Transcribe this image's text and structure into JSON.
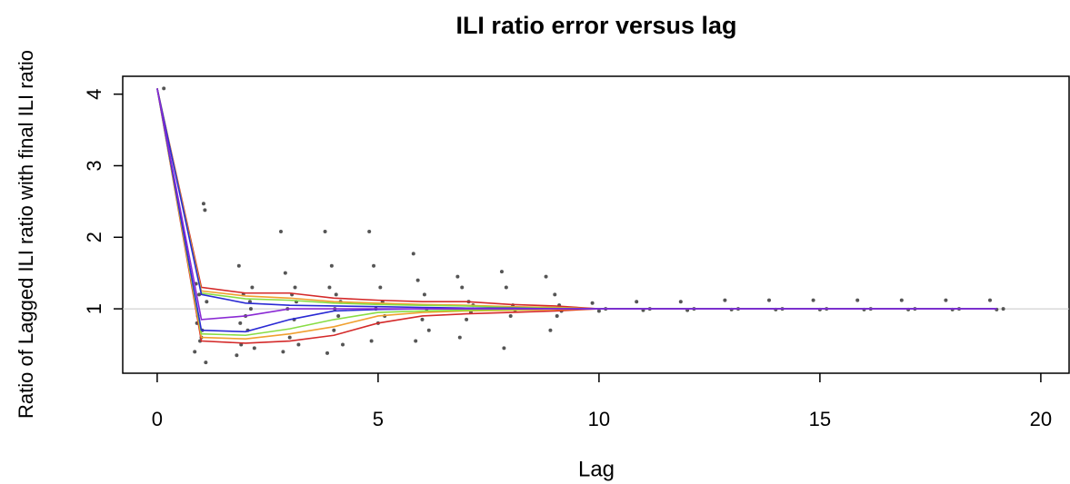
{
  "chart_data": {
    "type": "line",
    "title": "ILI ratio error versus lag",
    "x_label": "Lag",
    "y_label": "Ratio of Lagged ILI ratio with final ILI ratio",
    "xlim": [
      -0.78,
      20.64
    ],
    "ylim": [
      0.1,
      4.25
    ],
    "xticks": [
      0,
      5,
      10,
      15,
      20
    ],
    "yticks": [
      1,
      2,
      3,
      4
    ],
    "reference_line": 1,
    "x": [
      0,
      1,
      2,
      3,
      4,
      5,
      6,
      7,
      8,
      9,
      10,
      11,
      12,
      13,
      14,
      15,
      16,
      17,
      18,
      19
    ],
    "points": {
      "color": "#555555",
      "x": [
        0.15,
        0.85,
        0.9,
        0.95,
        1.0,
        1.05,
        1.1,
        0.88,
        1.02,
        1.08,
        0.92,
        1.12,
        0.97,
        1.8,
        1.85,
        1.9,
        1.95,
        2.0,
        2.05,
        2.1,
        2.15,
        2.2,
        1.88,
        2.12,
        2.8,
        2.85,
        2.9,
        3.0,
        3.05,
        3.1,
        3.15,
        3.2,
        2.95,
        3.12,
        3.8,
        3.85,
        3.95,
        4.0,
        4.05,
        4.1,
        4.15,
        4.2,
        3.9,
        4.02,
        4.8,
        4.85,
        4.9,
        5.0,
        5.05,
        5.1,
        5.15,
        4.95,
        5.8,
        5.85,
        5.9,
        6.0,
        6.05,
        6.1,
        6.15,
        6.8,
        6.85,
        6.9,
        7.0,
        7.05,
        7.1,
        7.15,
        7.8,
        7.85,
        7.9,
        8.0,
        8.05,
        8.1,
        8.8,
        8.9,
        9.0,
        9.05,
        9.1,
        9.15,
        9.85,
        10.0,
        10.15,
        10.85,
        11.0,
        11.15,
        11.85,
        12.0,
        12.15,
        12.85,
        13.0,
        13.15,
        13.85,
        14.0,
        14.15,
        14.85,
        15.0,
        15.15,
        15.85,
        16.0,
        16.15,
        16.85,
        17.0,
        17.15,
        17.85,
        18.0,
        18.15,
        18.85,
        19.0,
        19.15
      ],
      "values": [
        4.08,
        0.4,
        0.8,
        1.2,
        0.6,
        2.47,
        0.25,
        1.35,
        0.7,
        2.38,
        0.9,
        1.1,
        0.55,
        0.35,
        1.6,
        0.5,
        1.2,
        0.9,
        0.7,
        1.1,
        1.3,
        0.45,
        0.8,
        1.0,
        2.08,
        0.4,
        1.5,
        0.6,
        1.2,
        0.85,
        1.1,
        0.5,
        1.0,
        1.3,
        2.08,
        0.38,
        1.6,
        0.7,
        1.2,
        0.9,
        1.1,
        0.5,
        1.3,
        1.0,
        2.08,
        0.55,
        1.6,
        0.8,
        1.3,
        1.1,
        0.9,
        1.0,
        1.77,
        0.55,
        1.4,
        0.85,
        1.2,
        1.0,
        0.7,
        1.45,
        0.6,
        1.3,
        0.85,
        1.1,
        0.95,
        1.05,
        1.52,
        0.45,
        1.3,
        0.9,
        1.05,
        0.98,
        1.45,
        0.7,
        1.2,
        0.9,
        1.05,
        0.97,
        1.08,
        0.97,
        1.0,
        1.1,
        0.98,
        1.0,
        1.1,
        0.98,
        1.0,
        1.12,
        0.99,
        1.0,
        1.12,
        0.99,
        1.0,
        1.12,
        0.99,
        1.0,
        1.12,
        0.99,
        1.0,
        1.12,
        0.99,
        1.0,
        1.12,
        0.99,
        1.0,
        1.12,
        0.99,
        1.0
      ]
    },
    "series": [
      {
        "color": "#d42a2a",
        "values": [
          4.08,
          1.3,
          1.22,
          1.22,
          1.15,
          1.12,
          1.1,
          1.1,
          1.06,
          1.04,
          1,
          1,
          1,
          1,
          1,
          1,
          1,
          1,
          1,
          1
        ]
      },
      {
        "color": "#d42a2a",
        "values": [
          4.08,
          0.55,
          0.52,
          0.55,
          0.63,
          0.8,
          0.9,
          0.93,
          0.95,
          0.97,
          1,
          1,
          1,
          1,
          1,
          1,
          1,
          1,
          1,
          1
        ]
      },
      {
        "color": "#f0a030",
        "values": [
          4.08,
          1.25,
          1.18,
          1.15,
          1.1,
          1.08,
          1.06,
          1.05,
          1.03,
          1.02,
          1,
          1,
          1,
          1,
          1,
          1,
          1,
          1,
          1,
          1
        ]
      },
      {
        "color": "#f0a030",
        "values": [
          4.08,
          0.6,
          0.58,
          0.65,
          0.75,
          0.9,
          0.95,
          0.97,
          0.98,
          0.99,
          1,
          1,
          1,
          1,
          1,
          1,
          1,
          1,
          1,
          1
        ]
      },
      {
        "color": "#88dd44",
        "values": [
          4.08,
          1.22,
          1.14,
          1.12,
          1.08,
          1.06,
          1.05,
          1.04,
          1.02,
          1.01,
          1,
          1,
          1,
          1,
          1,
          1,
          1,
          1,
          1,
          1
        ]
      },
      {
        "color": "#88dd44",
        "values": [
          4.08,
          0.65,
          0.63,
          0.72,
          0.85,
          0.95,
          0.97,
          0.98,
          0.99,
          1,
          1,
          1,
          1,
          1,
          1,
          1,
          1,
          1,
          1,
          1
        ]
      },
      {
        "color": "#2a2ad4",
        "values": [
          4.08,
          1.2,
          1.08,
          1.05,
          1.04,
          1.03,
          1.02,
          1.01,
          1.01,
          1,
          1,
          1,
          1,
          1,
          1,
          1,
          1,
          1,
          1,
          1
        ]
      },
      {
        "color": "#2a2ad4",
        "values": [
          4.08,
          0.7,
          0.68,
          0.85,
          0.97,
          0.99,
          1,
          1,
          1,
          1,
          1,
          1,
          1,
          1,
          1,
          1,
          1,
          1,
          1,
          1
        ]
      },
      {
        "color": "#8a2ad4",
        "values": [
          4.08,
          0.85,
          0.9,
          1,
          1,
          1,
          1,
          1,
          1,
          1,
          1,
          1,
          1,
          1,
          1,
          1,
          1,
          1,
          1,
          1
        ]
      }
    ]
  }
}
